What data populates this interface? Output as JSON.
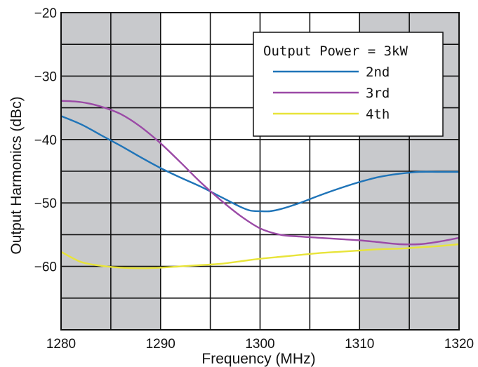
{
  "chart_data": {
    "type": "line",
    "xlabel": "Frequency (MHz)",
    "ylabel": "Output Harmonics (dBc)",
    "xlim": [
      1280,
      1320
    ],
    "ylim": [
      -70,
      -20
    ],
    "xticks": [
      1280,
      1290,
      1300,
      1310,
      1320
    ],
    "yticks": [
      -20,
      -30,
      -40,
      -50,
      -60
    ],
    "xtick_labels": [
      "1280",
      "1290",
      "1300",
      "1310",
      "1320"
    ],
    "ytick_labels": [
      "−20",
      "−30",
      "−40",
      "−50",
      "−60"
    ],
    "grid": true,
    "shaded_bands": [
      [
        1280,
        1290
      ],
      [
        1310,
        1320
      ]
    ],
    "band_color": "#c8c9cc",
    "legend": {
      "title": "Output Power = 3kW",
      "position": "top-right"
    },
    "series": [
      {
        "name": "2nd",
        "color": "#1f74b8",
        "x": [
          1280,
          1282,
          1284,
          1286,
          1288,
          1290,
          1292,
          1294,
          1296,
          1298,
          1299,
          1300,
          1301,
          1302,
          1304,
          1306,
          1308,
          1310,
          1312,
          1314,
          1316,
          1318,
          1320
        ],
        "y": [
          -36.3,
          -37.6,
          -39.3,
          -41.0,
          -42.8,
          -44.5,
          -46.0,
          -47.4,
          -49.0,
          -50.6,
          -51.2,
          -51.3,
          -51.3,
          -51.0,
          -50.0,
          -48.8,
          -47.7,
          -46.7,
          -45.9,
          -45.4,
          -45.1,
          -45.1,
          -45.1
        ]
      },
      {
        "name": "3rd",
        "color": "#9b4aa6",
        "x": [
          1280,
          1282,
          1284,
          1286,
          1288,
          1290,
          1292,
          1294,
          1296,
          1298,
          1300,
          1302,
          1304,
          1306,
          1308,
          1310,
          1312,
          1314,
          1316,
          1318,
          1320
        ],
        "y": [
          -33.9,
          -34.1,
          -34.8,
          -36.0,
          -38.0,
          -40.6,
          -43.6,
          -46.7,
          -49.5,
          -52.0,
          -54.0,
          -55.0,
          -55.3,
          -55.5,
          -55.7,
          -55.9,
          -56.2,
          -56.5,
          -56.5,
          -56.1,
          -55.5
        ]
      },
      {
        "name": "4th",
        "color": "#e8e43a",
        "x": [
          1280,
          1282,
          1284,
          1286,
          1288,
          1290,
          1292,
          1294,
          1296,
          1298,
          1300,
          1302,
          1304,
          1306,
          1308,
          1310,
          1312,
          1314,
          1316,
          1318,
          1320
        ],
        "y": [
          -57.7,
          -59.3,
          -59.9,
          -60.2,
          -60.3,
          -60.2,
          -60.0,
          -59.8,
          -59.6,
          -59.2,
          -58.8,
          -58.5,
          -58.2,
          -57.9,
          -57.7,
          -57.5,
          -57.3,
          -57.2,
          -57.0,
          -56.8,
          -56.5
        ]
      }
    ]
  }
}
